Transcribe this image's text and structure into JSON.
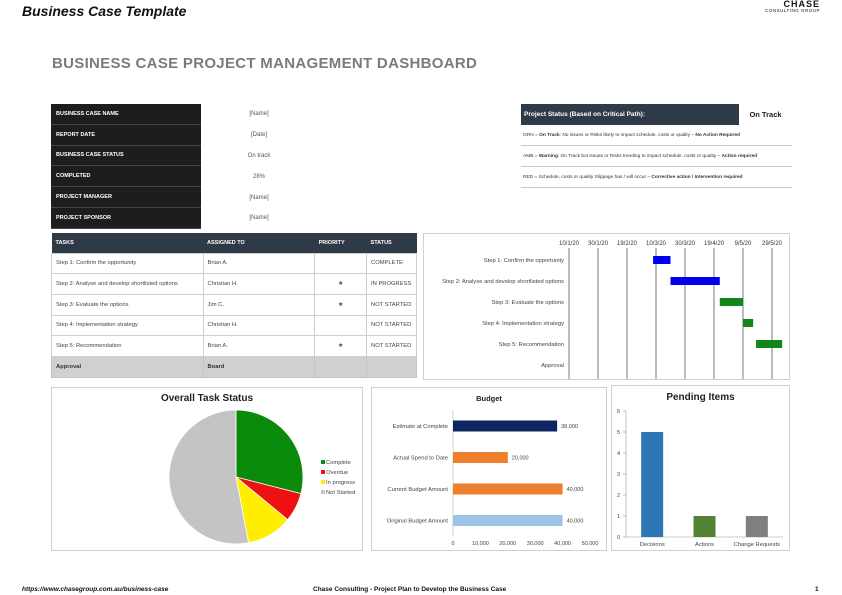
{
  "header": {
    "doc_title": "Business Case Template",
    "logo_line1": "CHASE",
    "logo_line2": "CONSULTING GROUP"
  },
  "dashboard_title": "BUSINESS CASE PROJECT MANAGEMENT DASHBOARD",
  "info": [
    {
      "label": "BUSINESS CASE NAME",
      "value": "[Name]"
    },
    {
      "label": "REPORT DATE",
      "value": "[Date]"
    },
    {
      "label": "BUSINESS CASE STATUS",
      "value": "On track"
    },
    {
      "label": "COMPLETED",
      "value": "28%"
    },
    {
      "label": "PROJECT MANAGER",
      "value": "[Name]"
    },
    {
      "label": "PROJECT SPONSOR",
      "value": "[Name]"
    }
  ],
  "status_legend": {
    "heading": "Project Status (Based on Critical Path):",
    "current": "On Track",
    "rows": [
      {
        "code": "GRN",
        "text": " = ",
        "emph": "On Track",
        "desc": ": No issues or Risks likely to impact schedule, costs or quality – ",
        "action": "No Action Required"
      },
      {
        "code": "AMB",
        "text": " = ",
        "emph": "Warning",
        "desc": ": On Track but issues or Risks trending to impact schedule, costs or quality – ",
        "action": "Action required"
      },
      {
        "code": "RED",
        "text": " = ",
        "emph": "",
        "desc": "Schedule, costs or quality Slippage has / will occur – ",
        "action": "Corrective action / Intervention required"
      }
    ]
  },
  "tasks": {
    "headers": [
      "TASKS",
      "ASSIGNED TO",
      "PRIORITY",
      "STATUS"
    ],
    "rows": [
      {
        "task": "Step 1: Confirm the opportunity",
        "assigned": "Brian A.",
        "priority": "",
        "status": "COMPLETE",
        "status_class": "st-complete"
      },
      {
        "task": "Step 2: Analyse and develop shortlisted options",
        "assigned": "Christian H.",
        "priority": "★",
        "status": "IN PROGRESS",
        "status_class": "st-progress"
      },
      {
        "task": "Step 3: Evaluate the options",
        "assigned": "Jim C.",
        "priority": "★",
        "status": "NOT STARTED",
        "status_class": "st-complete"
      },
      {
        "task": "Step 4: Implementation strategy",
        "assigned": "Christian H.",
        "priority": "",
        "status": "NOT STARTED",
        "status_class": "st-notstarted"
      },
      {
        "task": "Step 5: Recommendation",
        "assigned": "Brian A.",
        "priority": "★",
        "status": "NOT STARTED",
        "status_class": "st-notstarted"
      }
    ],
    "approval": {
      "task": "Approval",
      "assigned": "Board"
    }
  },
  "gantt": {
    "dates": [
      "10/1/20",
      "30/1/20",
      "19/2/20",
      "10/3/20",
      "30/3/20",
      "19/4/20",
      "9/5/20",
      "29/5/20"
    ],
    "tasks": [
      {
        "label": "Step 1: Confirm the opportunity",
        "start": "2020-03-08",
        "end": "2020-03-20",
        "color": "#0000ee"
      },
      {
        "label": "Step 2: Analyse and develop shortlisted options",
        "start": "2020-03-20",
        "end": "2020-04-23",
        "color": "#0000ee"
      },
      {
        "label": "Step 3: Evaluate the options",
        "start": "2020-04-23",
        "end": "2020-05-09",
        "color": "#13861b"
      },
      {
        "label": "Step 4: Implementation strategy",
        "start": "2020-05-09",
        "end": "2020-05-16",
        "color": "#13861b"
      },
      {
        "label": "Step 5: Recommendation",
        "start": "2020-05-18",
        "end": "2020-06-05",
        "color": "#13861b"
      },
      {
        "label": "Approval",
        "start": "",
        "end": "",
        "color": "#13861b"
      }
    ]
  },
  "task_status_chart": {
    "title": "Overall Task Status",
    "chart_data": {
      "type": "pie",
      "slices": [
        {
          "name": "Complete",
          "value": 29,
          "color": "#0a8a0a"
        },
        {
          "name": "Overdue",
          "value": 7,
          "color": "#ee1111"
        },
        {
          "name": "In progress",
          "value": 11,
          "color": "#ffee00"
        },
        {
          "name": "Not Started",
          "value": 53,
          "color": "#c4c4c4"
        }
      ]
    }
  },
  "budget_chart": {
    "title": "Budget",
    "chart_data": {
      "type": "bar",
      "orientation": "horizontal",
      "categories": [
        "Estimate at Complete",
        "Actual Spend to Date",
        "Current Budget Amount",
        "Original Budget Amount"
      ],
      "values": [
        38000,
        20000,
        40000,
        40000
      ],
      "value_labels": [
        "38,000",
        "20,000",
        "40,000",
        "40,000"
      ],
      "colors": [
        "#0d2560",
        "#ee7f2d",
        "#ee7f2d",
        "#9dc3e6"
      ],
      "xlim": [
        0,
        50000
      ],
      "ticks": [
        "0",
        "10,000",
        "20,000",
        "30,000",
        "40,000",
        "50,000"
      ]
    }
  },
  "pending_chart": {
    "title": "Pending Items",
    "chart_data": {
      "type": "bar",
      "categories": [
        "Decisions",
        "Actions",
        "Change Requests"
      ],
      "values": [
        5,
        1,
        1
      ],
      "colors": [
        "#2e75b6",
        "#548235",
        "#7f7f7f"
      ],
      "ylim": [
        0,
        6
      ],
      "ticks": [
        "0",
        "1",
        "2",
        "3",
        "4",
        "5",
        "6"
      ]
    }
  },
  "footer": {
    "url": "https://www.chasegroup.com.au/business-case",
    "center": "Chase Consulting - Project Plan to Develop the Business Case",
    "page": "1"
  }
}
